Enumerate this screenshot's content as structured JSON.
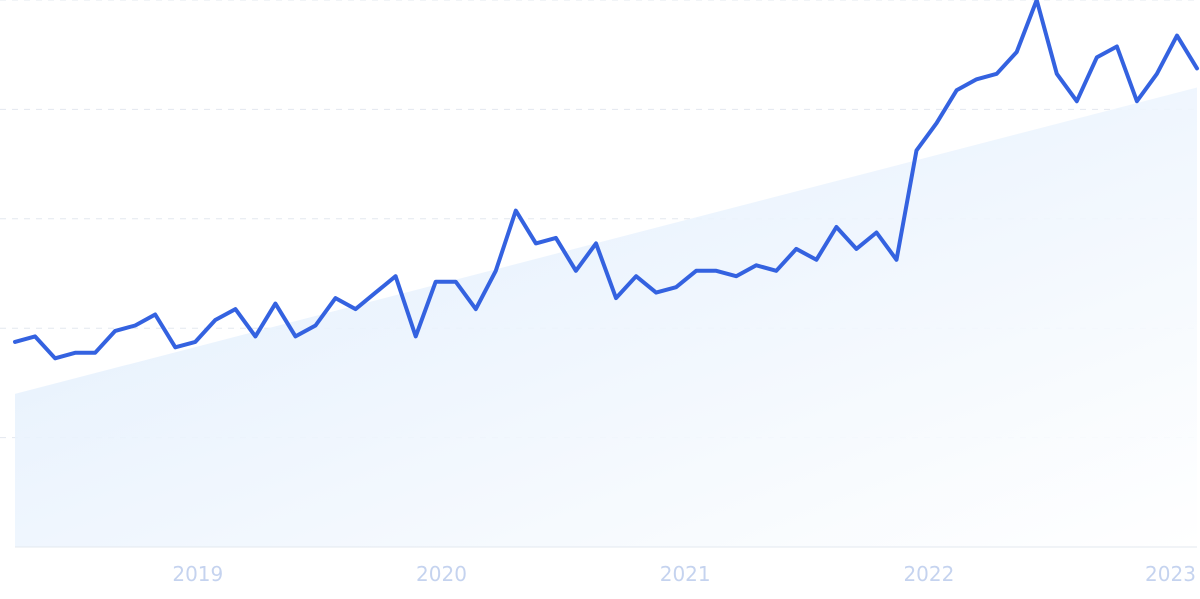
{
  "chart_data": {
    "type": "line",
    "title": "",
    "xlabel": "",
    "ylabel": "",
    "x_ticks": [
      "2019",
      "2020",
      "2021",
      "2022",
      "2023"
    ],
    "x_tick_positions": [
      2019.0,
      2020.0,
      2021.0,
      2022.0,
      2023.0
    ],
    "xlim": [
      2018.25,
      2023.1
    ],
    "ylim": [
      0,
      100
    ],
    "grid": true,
    "y_gridlines": [
      20,
      40,
      60,
      80,
      100
    ],
    "legend": "none",
    "series": [
      {
        "values": [
          37.5,
          38.5,
          34.5,
          35.5,
          35.5,
          39.5,
          40.5,
          42.5,
          36.5,
          37.5,
          41.5,
          43.5,
          38.5,
          44.5,
          38.5,
          40.5,
          45.5,
          43.5,
          46.5,
          49.5,
          38.5,
          48.5,
          48.5,
          43.5,
          50.5,
          61.5,
          55.5,
          56.5,
          50.5,
          55.5,
          45.5,
          49.5,
          46.5,
          47.5,
          50.5,
          50.5,
          49.5,
          51.5,
          50.5,
          54.5,
          52.5,
          58.5,
          54.5,
          57.5,
          52.5,
          72.5,
          77.5,
          83.5,
          85.5,
          86.5,
          90.5,
          100,
          86.5,
          81.5,
          89.5,
          91.5,
          81.5,
          86.5,
          93.5,
          87.5
        ],
        "color": "#3462e0"
      }
    ],
    "trend_area": {
      "start": 28,
      "end": 84,
      "color_top": "#dbeafb",
      "color_bottom": "#ffffff"
    },
    "colors": {
      "line": "#3462e0",
      "grid": "#e3e8ef",
      "tick_label": "#c5d3ef",
      "axis": "#e3e8ef"
    }
  }
}
